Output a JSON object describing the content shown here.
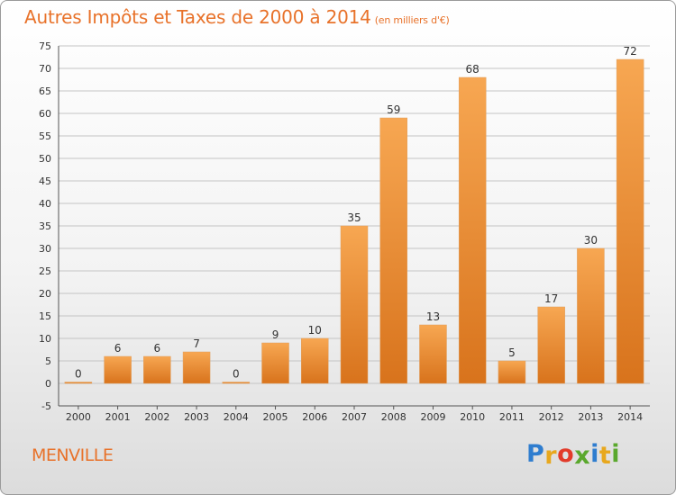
{
  "chart_data": {
    "type": "bar",
    "title": "Autres Impôts et Taxes de 2000 à 2014",
    "subtitle": "(en milliers d'€)",
    "categories": [
      "2000",
      "2001",
      "2002",
      "2003",
      "2004",
      "2005",
      "2006",
      "2007",
      "2008",
      "2009",
      "2010",
      "2011",
      "2012",
      "2013",
      "2014"
    ],
    "values": [
      0,
      6,
      6,
      7,
      0,
      9,
      10,
      35,
      59,
      13,
      68,
      5,
      17,
      30,
      72
    ],
    "ylim": [
      -5,
      75
    ],
    "yticks": [
      -5,
      0,
      5,
      10,
      15,
      20,
      25,
      30,
      35,
      40,
      45,
      50,
      55,
      60,
      65,
      70,
      75
    ],
    "grid": "horizontal",
    "xlabel": "",
    "ylabel": "",
    "bar_color": "#f0922e"
  },
  "commune": "MENVILLE",
  "logo": {
    "letters": [
      {
        "ch": "P",
        "color": "#2f7dcf"
      },
      {
        "ch": "r",
        "color": "#e8a81e"
      },
      {
        "ch": "o",
        "color": "#e23b2a"
      },
      {
        "ch": "x",
        "color": "#5aa82d"
      },
      {
        "ch": "i",
        "color": "#2f7dcf"
      },
      {
        "ch": "t",
        "color": "#e8a81e"
      },
      {
        "ch": "i",
        "color": "#5aa82d"
      }
    ]
  },
  "colors": {
    "title": "#e8722a",
    "bar_light": "#f7a752",
    "bar_dark": "#d8731c",
    "grid": "#c4c4c4"
  }
}
